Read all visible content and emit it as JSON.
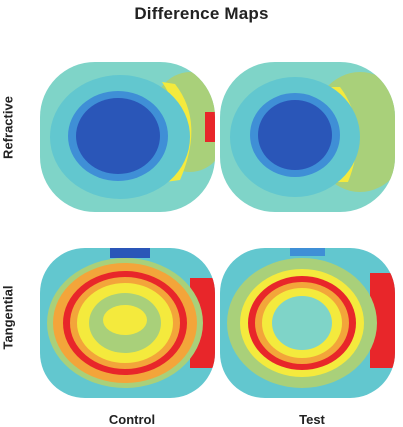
{
  "title": "Difference Maps",
  "rows": [
    "Refractive",
    "Tangential"
  ],
  "columns": [
    "Control",
    "Test"
  ],
  "colors": {
    "deep_blue": "#2a56b8",
    "mid_blue": "#3f8fd6",
    "cyan": "#62c7cf",
    "aqua": "#7fd4c8",
    "green": "#a9d07a",
    "yellow": "#f4ea3d",
    "orange": "#f3a53a",
    "red": "#e8262a"
  }
}
